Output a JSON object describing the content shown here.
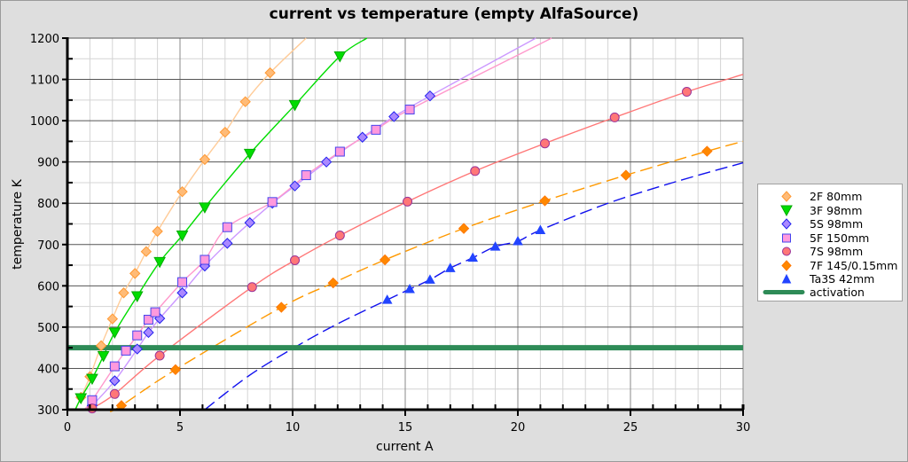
{
  "chart_data": {
    "type": "scatter",
    "title": "current vs temperature  (empty AlfaSource)",
    "xlabel": "current A",
    "ylabel": "temperature K",
    "xlim": [
      0,
      30
    ],
    "ylim": [
      300,
      1200
    ],
    "x_ticks": [
      0,
      5,
      10,
      15,
      20,
      25,
      30
    ],
    "y_ticks": [
      300,
      400,
      500,
      600,
      700,
      800,
      900,
      1000,
      1100,
      1200
    ],
    "grid": true,
    "legend_position": "right",
    "series": [
      {
        "name": "2F 80mm",
        "marker": "diamond",
        "color": "#ffbb77",
        "line": "solid",
        "x": [
          0.6,
          1.0,
          1.5,
          2.0,
          2.5,
          3.0,
          3.5,
          4.0,
          5.1,
          6.1,
          7.0,
          7.9,
          9.0
        ],
        "y": [
          330,
          380,
          455,
          520,
          583,
          630,
          683,
          732,
          828,
          906,
          972,
          1046,
          1116
        ]
      },
      {
        "name": "3F 98mm",
        "marker": "triangle-down",
        "color": "#00dd00",
        "line": "solid",
        "x": [
          0.6,
          1.1,
          1.6,
          2.1,
          3.1,
          4.1,
          5.1,
          6.1,
          8.1,
          10.1,
          12.1
        ],
        "y": [
          328,
          375,
          430,
          487,
          575,
          658,
          722,
          790,
          920,
          1038,
          1156
        ]
      },
      {
        "name": "5S 98mm",
        "marker": "diamond",
        "color": "#aa88ff",
        "line": "solid",
        "x": [
          1.1,
          2.1,
          3.1,
          3.6,
          4.1,
          5.1,
          6.1,
          7.1,
          8.1,
          9.1,
          10.1,
          11.5,
          13.1,
          14.5,
          16.1
        ],
        "y": [
          310,
          370,
          447,
          487,
          521,
          583,
          648,
          703,
          753,
          800,
          842,
          900,
          960,
          1010,
          1060
        ]
      },
      {
        "name": "5F 150mm",
        "marker": "square",
        "color": "#ff99dd",
        "line": "solid",
        "x": [
          1.1,
          2.1,
          2.6,
          3.1,
          3.6,
          3.9,
          5.1,
          6.1,
          7.1,
          9.1,
          10.6,
          12.1,
          13.7,
          15.2
        ],
        "y": [
          323,
          405,
          443,
          480,
          518,
          536,
          609,
          663,
          742,
          803,
          868,
          925,
          978,
          1027
        ]
      },
      {
        "name": "7S 98mm",
        "marker": "circle",
        "color": "#ff7777",
        "line": "solid",
        "x": [
          1.1,
          2.1,
          4.1,
          8.2,
          10.1,
          12.1,
          15.1,
          18.1,
          21.2,
          24.3,
          27.5
        ],
        "y": [
          303,
          338,
          431,
          597,
          662,
          722,
          804,
          878,
          945,
          1008,
          1070
        ]
      },
      {
        "name": "7F 145/0.15mm",
        "marker": "diamond",
        "color": "#ff8800",
        "line": "dashed",
        "x": [
          2.4,
          4.8,
          9.5,
          11.8,
          14.1,
          17.6,
          21.2,
          24.8,
          28.4
        ],
        "y": [
          310,
          397,
          548,
          607,
          663,
          739,
          806,
          868,
          926
        ]
      },
      {
        "name": "Ta3S 42mm",
        "marker": "triangle-up",
        "color": "#2244ff",
        "line": "dashed",
        "x": [
          14.2,
          15.2,
          16.1,
          17.0,
          18.0,
          19.0,
          20.0,
          21.0
        ],
        "y": [
          566,
          592,
          615,
          643,
          668,
          695,
          708,
          735
        ]
      },
      {
        "name": "activation",
        "marker": "none",
        "color": "#2e8b57",
        "line": "thick-solid",
        "x": [
          0,
          30
        ],
        "y": [
          450,
          450
        ]
      }
    ]
  },
  "legend": {
    "items": [
      {
        "label": "2F 80mm"
      },
      {
        "label": "3F 98mm"
      },
      {
        "label": "5S 98mm"
      },
      {
        "label": "5F 150mm"
      },
      {
        "label": "7S 98mm"
      },
      {
        "label": "7F 145/0.15mm"
      },
      {
        "label": "Ta3S 42mm"
      },
      {
        "label": "activation"
      }
    ]
  }
}
